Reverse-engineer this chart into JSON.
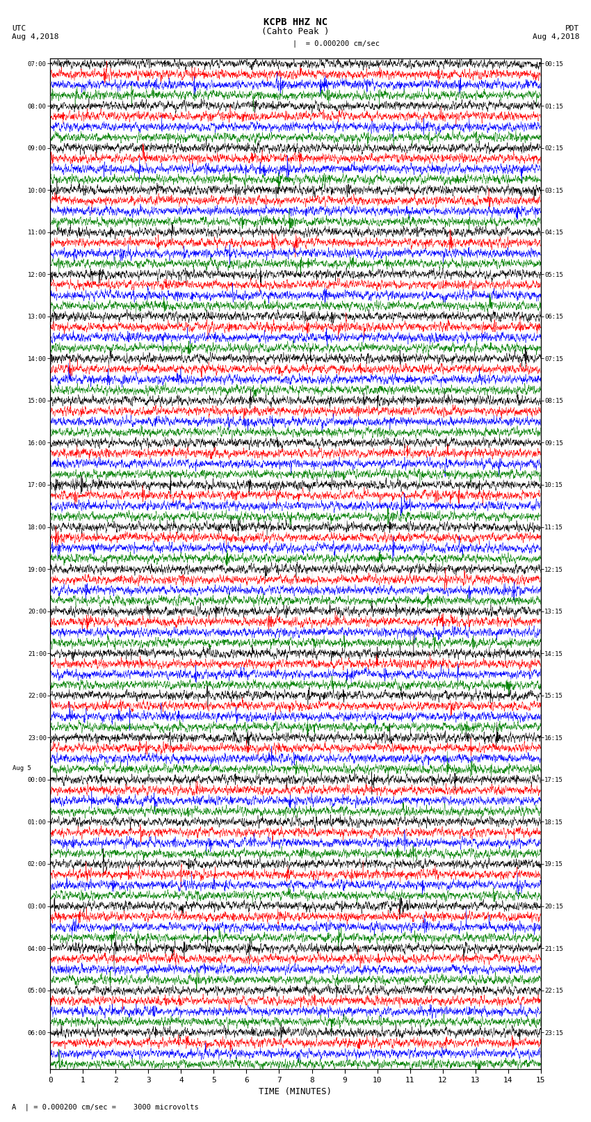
{
  "title_center": "KCPB HHZ NC",
  "title_sub": "(Cahto Peak )",
  "scale_label": "| = 0.000200 cm/sec",
  "scale_note": "A  | = 0.000200 cm/sec =    3000 microvolts",
  "xlabel": "TIME (MINUTES)",
  "label_utc_1": "UTC",
  "label_utc_2": "Aug 4,2018",
  "label_pdt_1": "PDT",
  "label_pdt_2": "Aug 4,2018",
  "label_aug5": "Aug 5",
  "colors": [
    "black",
    "red",
    "blue",
    "green"
  ],
  "x_ticks": [
    0,
    1,
    2,
    3,
    4,
    5,
    6,
    7,
    8,
    9,
    10,
    11,
    12,
    13,
    14,
    15
  ],
  "x_lim": [
    0,
    15
  ],
  "traces_per_hour": 4,
  "n_hours": 24,
  "noise_seed": 42,
  "trace_amplitude": 0.38,
  "bg_color": "#ffffff",
  "fig_width": 8.5,
  "fig_height": 16.13,
  "dpi": 100,
  "utc_hours": [
    "07:00",
    "08:00",
    "09:00",
    "10:00",
    "11:00",
    "12:00",
    "13:00",
    "14:00",
    "15:00",
    "16:00",
    "17:00",
    "18:00",
    "19:00",
    "20:00",
    "21:00",
    "22:00",
    "23:00",
    "00:00",
    "01:00",
    "02:00",
    "03:00",
    "04:00",
    "05:00",
    "06:00"
  ],
  "pdt_hours": [
    "00:15",
    "01:15",
    "02:15",
    "03:15",
    "04:15",
    "05:15",
    "06:15",
    "07:15",
    "08:15",
    "09:15",
    "10:15",
    "11:15",
    "12:15",
    "13:15",
    "14:15",
    "15:15",
    "16:15",
    "17:15",
    "18:15",
    "19:15",
    "20:15",
    "21:15",
    "22:15",
    "23:15"
  ],
  "aug5_hour_index": 17
}
